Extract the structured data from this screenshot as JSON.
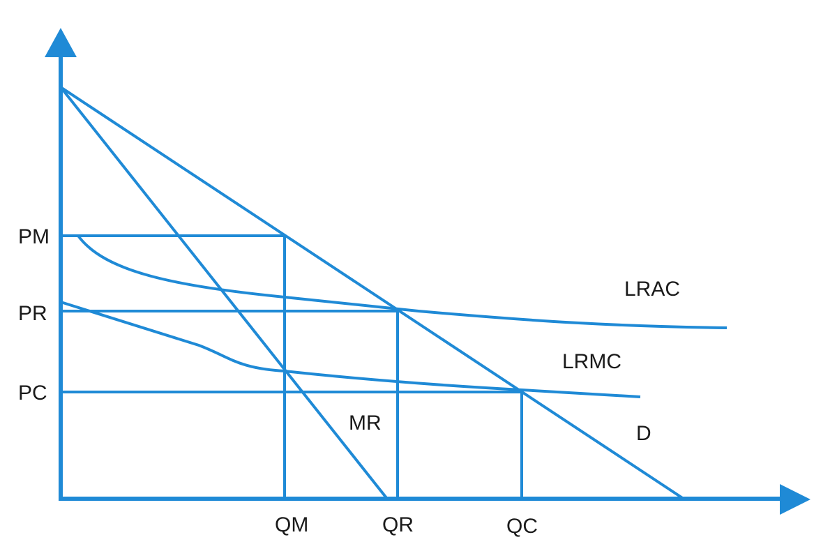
{
  "colors": {
    "line": "#1f8ad6",
    "text": "#1a1a1a",
    "background": "#ffffff"
  },
  "price_labels": {
    "pm": "PM",
    "pr": "PR",
    "pc": "PC"
  },
  "quantity_labels": {
    "qm": "QM",
    "qr": "QR",
    "qc": "QC"
  },
  "curve_labels": {
    "lrac": "LRAC",
    "lrmc": "LRMC",
    "mr": "MR",
    "d": "D"
  }
}
